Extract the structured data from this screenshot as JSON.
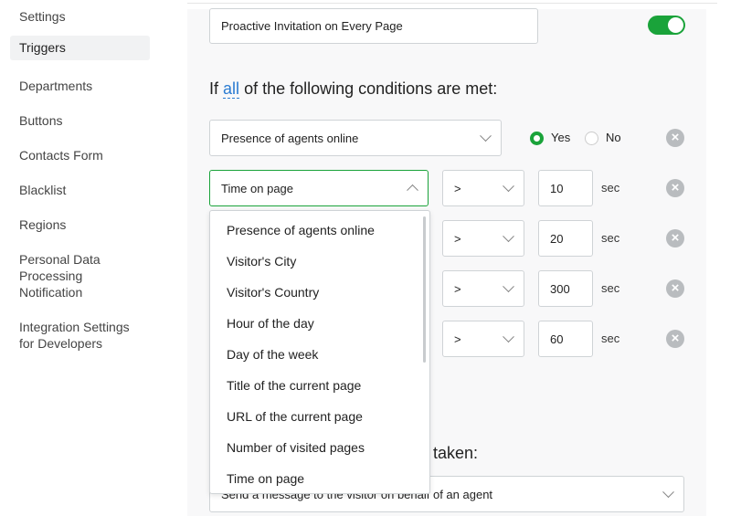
{
  "sidebar": {
    "items": [
      {
        "label": "Settings"
      },
      {
        "label": "Triggers",
        "active": true
      },
      {
        "label": "Departments"
      },
      {
        "label": "Buttons"
      },
      {
        "label": "Contacts Form"
      },
      {
        "label": "Blacklist"
      },
      {
        "label": "Regions"
      },
      {
        "label": "Personal Data\nProcessing\nNotification"
      },
      {
        "label": "Integration Settings\nfor Developers"
      }
    ]
  },
  "trigger": {
    "name": "Proactive Invitation on Every Page",
    "enabled": true
  },
  "conditions": {
    "prefix": "If",
    "mode": "all",
    "suffix": "of the following conditions are met:",
    "rows": [
      {
        "field": "Presence of agents online",
        "yes": "Yes",
        "no": "No",
        "selected": "Yes"
      },
      {
        "field": "Time on page",
        "op": ">",
        "value": "10",
        "unit": "sec"
      },
      {
        "op": ">",
        "value": "20",
        "unit": "sec"
      },
      {
        "op": ">",
        "value": "300",
        "unit": "sec"
      },
      {
        "op": ">",
        "value": "60",
        "unit": "sec"
      }
    ]
  },
  "dropdown": {
    "options": [
      "Presence of agents online",
      "Visitor's City",
      "Visitor's Country",
      "Hour of the day",
      "Day of the week",
      "Title of the current page",
      "URL of the current page",
      "Number of visited pages",
      "Time on page"
    ]
  },
  "actions": {
    "heading": "taken:",
    "selected": "Send a message to the visitor on behalf of an agent"
  },
  "colors": {
    "accent": "#1aa33a",
    "link": "#2a7bd1"
  }
}
